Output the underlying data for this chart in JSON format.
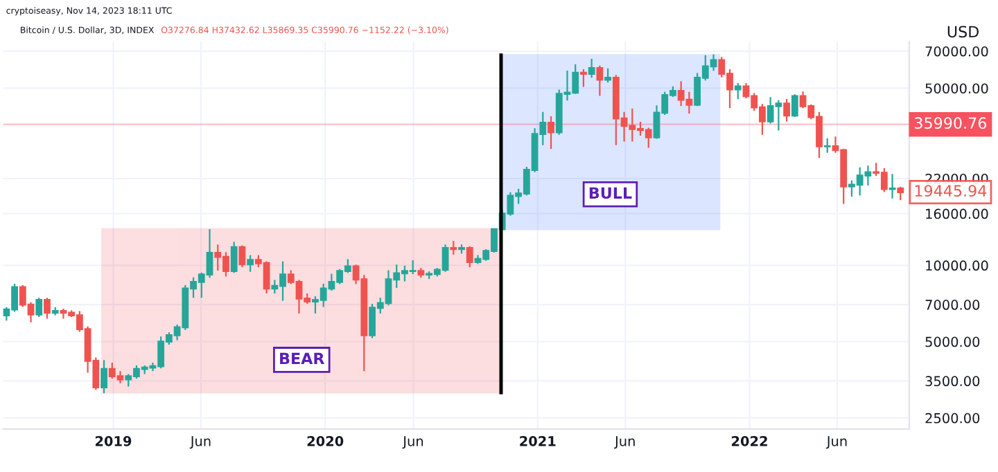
{
  "chart_data": {
    "type": "candlestick",
    "title": "Bitcoin / U.S. Dollar, 3D, INDEX",
    "subtitle": "O37276.84 H37432.62 L35869.35 C35990.76 −1152.22 (−3.10%)",
    "ylabel": "USD",
    "log": true,
    "grid": true,
    "annotations": [
      "cryptoiseasy, Nov 14, 2023 18:11 UTC",
      "19445.94"
    ],
    "xlim": [
      "2018-06-25",
      "2022-10-03"
    ],
    "xticks": [
      {
        "value": "2019-01-01",
        "label": "2019"
      },
      {
        "value": "2019-06-01",
        "label": "Jun"
      },
      {
        "value": "2020-01-01",
        "label": "2020"
      },
      {
        "value": "2020-06-01",
        "label": "Jun"
      },
      {
        "value": "2021-01-01",
        "label": "2021"
      },
      {
        "value": "2021-06-01",
        "label": "Jun"
      },
      {
        "value": "2022-01-01",
        "label": "2022"
      },
      {
        "value": "2022-06-01",
        "label": "Jun"
      }
    ],
    "ylim": [
      2260,
      76400
    ],
    "yticks": [
      {
        "value": 2500,
        "label": "2500.00"
      },
      {
        "value": 3500,
        "label": "3500.00"
      },
      {
        "value": 5000,
        "label": "5000.00"
      },
      {
        "value": 7000,
        "label": "7000.00"
      },
      {
        "value": 10000,
        "label": "10000.00"
      },
      {
        "value": 16000,
        "label": "16000.00"
      },
      {
        "value": 22000,
        "label": "22000.00"
      },
      {
        "value": 50000,
        "label": "50000.00"
      },
      {
        "value": 70000,
        "label": "70000.00"
      }
    ],
    "ref_lines": [
      {
        "axis": "y",
        "value": 35990.76,
        "label": "35990.76",
        "color": "#f7525f"
      },
      {
        "axis": "x",
        "value": "2020-10-30",
        "color": "#000000"
      }
    ],
    "bands": [
      {
        "axis": "x",
        "from": "2018-12-13",
        "to": "2020-10-30",
        "label": "BEAR",
        "color": "#f23645"
      },
      {
        "axis": "x",
        "from": "2020-10-30",
        "to": "2021-11-10",
        "label": "BULL",
        "color": "#2962ff"
      }
    ],
    "x": [
      "2018-07-01",
      "2018-07-15",
      "2018-07-29",
      "2018-08-12",
      "2018-08-26",
      "2018-09-09",
      "2018-09-23",
      "2018-10-07",
      "2018-10-21",
      "2018-11-04",
      "2018-11-18",
      "2018-12-02",
      "2018-12-16",
      "2018-12-30",
      "2019-01-13",
      "2019-01-27",
      "2019-02-10",
      "2019-02-24",
      "2019-03-10",
      "2019-03-24",
      "2019-04-07",
      "2019-04-21",
      "2019-05-05",
      "2019-05-19",
      "2019-06-02",
      "2019-06-16",
      "2019-06-30",
      "2019-07-14",
      "2019-07-28",
      "2019-08-11",
      "2019-08-25",
      "2019-09-08",
      "2019-09-22",
      "2019-10-06",
      "2019-10-20",
      "2019-11-03",
      "2019-11-17",
      "2019-12-01",
      "2019-12-15",
      "2019-12-29",
      "2020-01-12",
      "2020-01-26",
      "2020-02-09",
      "2020-02-23",
      "2020-03-08",
      "2020-03-22",
      "2020-04-05",
      "2020-04-19",
      "2020-05-03",
      "2020-05-17",
      "2020-05-31",
      "2020-06-14",
      "2020-06-28",
      "2020-07-12",
      "2020-07-26",
      "2020-08-09",
      "2020-08-23",
      "2020-09-06",
      "2020-09-20",
      "2020-10-04",
      "2020-10-18",
      "2020-11-01",
      "2020-11-15",
      "2020-11-29",
      "2020-12-13",
      "2020-12-27",
      "2021-01-10",
      "2021-01-24",
      "2021-02-07",
      "2021-02-21",
      "2021-03-07",
      "2021-03-21",
      "2021-04-04",
      "2021-04-18",
      "2021-05-02",
      "2021-05-16",
      "2021-05-30",
      "2021-06-13",
      "2021-06-27",
      "2021-07-11",
      "2021-07-25",
      "2021-08-08",
      "2021-08-22",
      "2021-09-05",
      "2021-09-19",
      "2021-10-03",
      "2021-10-17",
      "2021-10-31",
      "2021-11-14",
      "2021-11-28",
      "2021-12-12",
      "2021-12-26",
      "2022-01-09",
      "2022-01-23",
      "2022-02-06",
      "2022-02-20",
      "2022-03-06",
      "2022-03-20",
      "2022-04-03",
      "2022-04-17",
      "2022-05-01",
      "2022-05-15",
      "2022-05-29",
      "2022-06-12",
      "2022-06-26",
      "2022-07-10",
      "2022-07-24",
      "2022-08-07",
      "2022-08-21",
      "2022-09-04",
      "2022-09-18"
    ],
    "ohlc": [
      [
        6350,
        6800,
        6100,
        6700
      ],
      [
        6700,
        8400,
        6600,
        8200
      ],
      [
        8200,
        8300,
        6900,
        7000
      ],
      [
        7000,
        7100,
        6000,
        6400
      ],
      [
        6400,
        7400,
        6300,
        7300
      ],
      [
        7300,
        7400,
        6200,
        6500
      ],
      [
        6500,
        6800,
        6400,
        6600
      ],
      [
        6600,
        6700,
        6200,
        6500
      ],
      [
        6500,
        6600,
        6300,
        6350
      ],
      [
        6350,
        6550,
        5500,
        5600
      ],
      [
        5600,
        5700,
        3800,
        4200
      ],
      [
        4200,
        4300,
        3250,
        3300
      ],
      [
        3300,
        4200,
        3150,
        3900
      ],
      [
        3900,
        4100,
        3600,
        3650
      ],
      [
        3650,
        3800,
        3450,
        3550
      ],
      [
        3550,
        3700,
        3350,
        3650
      ],
      [
        3650,
        4000,
        3600,
        3900
      ],
      [
        3900,
        4000,
        3750,
        3950
      ],
      [
        3950,
        4100,
        3850,
        4000
      ],
      [
        4000,
        5200,
        3950,
        5000
      ],
      [
        5000,
        5400,
        4900,
        5300
      ],
      [
        5300,
        5800,
        5100,
        5700
      ],
      [
        5700,
        8300,
        5600,
        8100
      ],
      [
        8100,
        8900,
        7500,
        8600
      ],
      [
        8600,
        9300,
        7500,
        9200
      ],
      [
        9200,
        13800,
        9000,
        11200
      ],
      [
        11200,
        12000,
        9600,
        10800
      ],
      [
        10800,
        11200,
        9100,
        9500
      ],
      [
        9500,
        12300,
        9400,
        11800
      ],
      [
        11800,
        11900,
        9900,
        10100
      ],
      [
        10100,
        10900,
        9500,
        10500
      ],
      [
        10500,
        10900,
        9900,
        10200
      ],
      [
        10200,
        10300,
        7800,
        8100
      ],
      [
        8100,
        8700,
        7800,
        8300
      ],
      [
        8300,
        10300,
        7300,
        9200
      ],
      [
        9200,
        9500,
        8500,
        8600
      ],
      [
        8600,
        8700,
        6500,
        7400
      ],
      [
        7400,
        7700,
        7100,
        7200
      ],
      [
        7200,
        7500,
        6500,
        7300
      ],
      [
        7300,
        8400,
        6900,
        8100
      ],
      [
        8100,
        9200,
        8000,
        8600
      ],
      [
        8600,
        9600,
        8500,
        9500
      ],
      [
        9500,
        10500,
        9400,
        9900
      ],
      [
        9900,
        10000,
        8500,
        8800
      ],
      [
        8800,
        9100,
        3850,
        5300
      ],
      [
        5300,
        7000,
        5200,
        6800
      ],
      [
        6800,
        7400,
        6500,
        7100
      ],
      [
        7100,
        9500,
        7000,
        8800
      ],
      [
        8800,
        10000,
        8200,
        9300
      ],
      [
        9300,
        9900,
        8700,
        9500
      ],
      [
        9500,
        10400,
        9300,
        9500
      ],
      [
        9500,
        9700,
        9000,
        9200
      ],
      [
        9200,
        9400,
        8900,
        9250
      ],
      [
        9250,
        9700,
        9100,
        9600
      ],
      [
        9600,
        12000,
        9500,
        11700
      ],
      [
        11700,
        12400,
        11100,
        11600
      ],
      [
        11600,
        12000,
        11200,
        11700
      ],
      [
        11700,
        11800,
        9900,
        10300
      ],
      [
        10300,
        10900,
        10200,
        10600
      ],
      [
        10600,
        11500,
        10500,
        11400
      ],
      [
        11400,
        13900,
        11300,
        13900
      ],
      [
        13900,
        16400,
        13900,
        16000
      ],
      [
        16000,
        19300,
        15800,
        18800
      ],
      [
        18800,
        19900,
        17600,
        19200
      ],
      [
        19200,
        24300,
        19000,
        23800
      ],
      [
        23800,
        34500,
        23500,
        33000
      ],
      [
        33000,
        40000,
        30000,
        36500
      ],
      [
        36500,
        38500,
        29000,
        33500
      ],
      [
        33500,
        49000,
        33000,
        47500
      ],
      [
        47500,
        58300,
        45000,
        48000
      ],
      [
        48000,
        61700,
        47800,
        57500
      ],
      [
        57500,
        59000,
        51000,
        57000
      ],
      [
        57000,
        64800,
        55400,
        60000
      ],
      [
        60000,
        61000,
        47000,
        54000
      ],
      [
        54000,
        59500,
        53000,
        55000
      ],
      [
        55000,
        56000,
        30000,
        38000
      ],
      [
        38000,
        40000,
        31000,
        35500
      ],
      [
        35500,
        41300,
        31000,
        34500
      ],
      [
        34500,
        36600,
        32700,
        34200
      ],
      [
        34200,
        34700,
        29300,
        32000
      ],
      [
        32000,
        42500,
        31800,
        40000
      ],
      [
        40000,
        48000,
        39500,
        47000
      ],
      [
        47000,
        50500,
        46500,
        48800
      ],
      [
        48800,
        52900,
        42800,
        45000
      ],
      [
        45000,
        48000,
        40000,
        43000
      ],
      [
        43000,
        57000,
        42800,
        55000
      ],
      [
        55000,
        67000,
        54000,
        61000
      ],
      [
        61000,
        67500,
        59000,
        64500
      ],
      [
        64500,
        66000,
        55600,
        57000
      ],
      [
        57000,
        59000,
        42000,
        49500
      ],
      [
        49500,
        52000,
        45600,
        50800
      ],
      [
        50800,
        52000,
        45900,
        46500
      ],
      [
        46500,
        47500,
        41000,
        42000
      ],
      [
        42000,
        43000,
        33000,
        37000
      ],
      [
        37000,
        45800,
        36500,
        42500
      ],
      [
        42500,
        44500,
        34300,
        43500
      ],
      [
        43500,
        45000,
        37200,
        39000
      ],
      [
        39000,
        47000,
        38800,
        46500
      ],
      [
        46500,
        48200,
        42000,
        42500
      ],
      [
        42500,
        42900,
        38000,
        38500
      ],
      [
        38500,
        40000,
        26700,
        29500
      ],
      [
        29500,
        31500,
        28000,
        29500
      ],
      [
        29500,
        32000,
        28000,
        28500
      ],
      [
        28500,
        28600,
        17600,
        20500
      ],
      [
        20500,
        21500,
        18800,
        20800
      ],
      [
        20800,
        24200,
        19000,
        22600
      ],
      [
        22600,
        24600,
        20800,
        23300
      ],
      [
        23300,
        25200,
        22700,
        23200
      ],
      [
        23200,
        24000,
        19600,
        20000
      ],
      [
        20000,
        22800,
        18500,
        20100
      ],
      [
        20100,
        20300,
        18200,
        19445.94
      ]
    ]
  }
}
